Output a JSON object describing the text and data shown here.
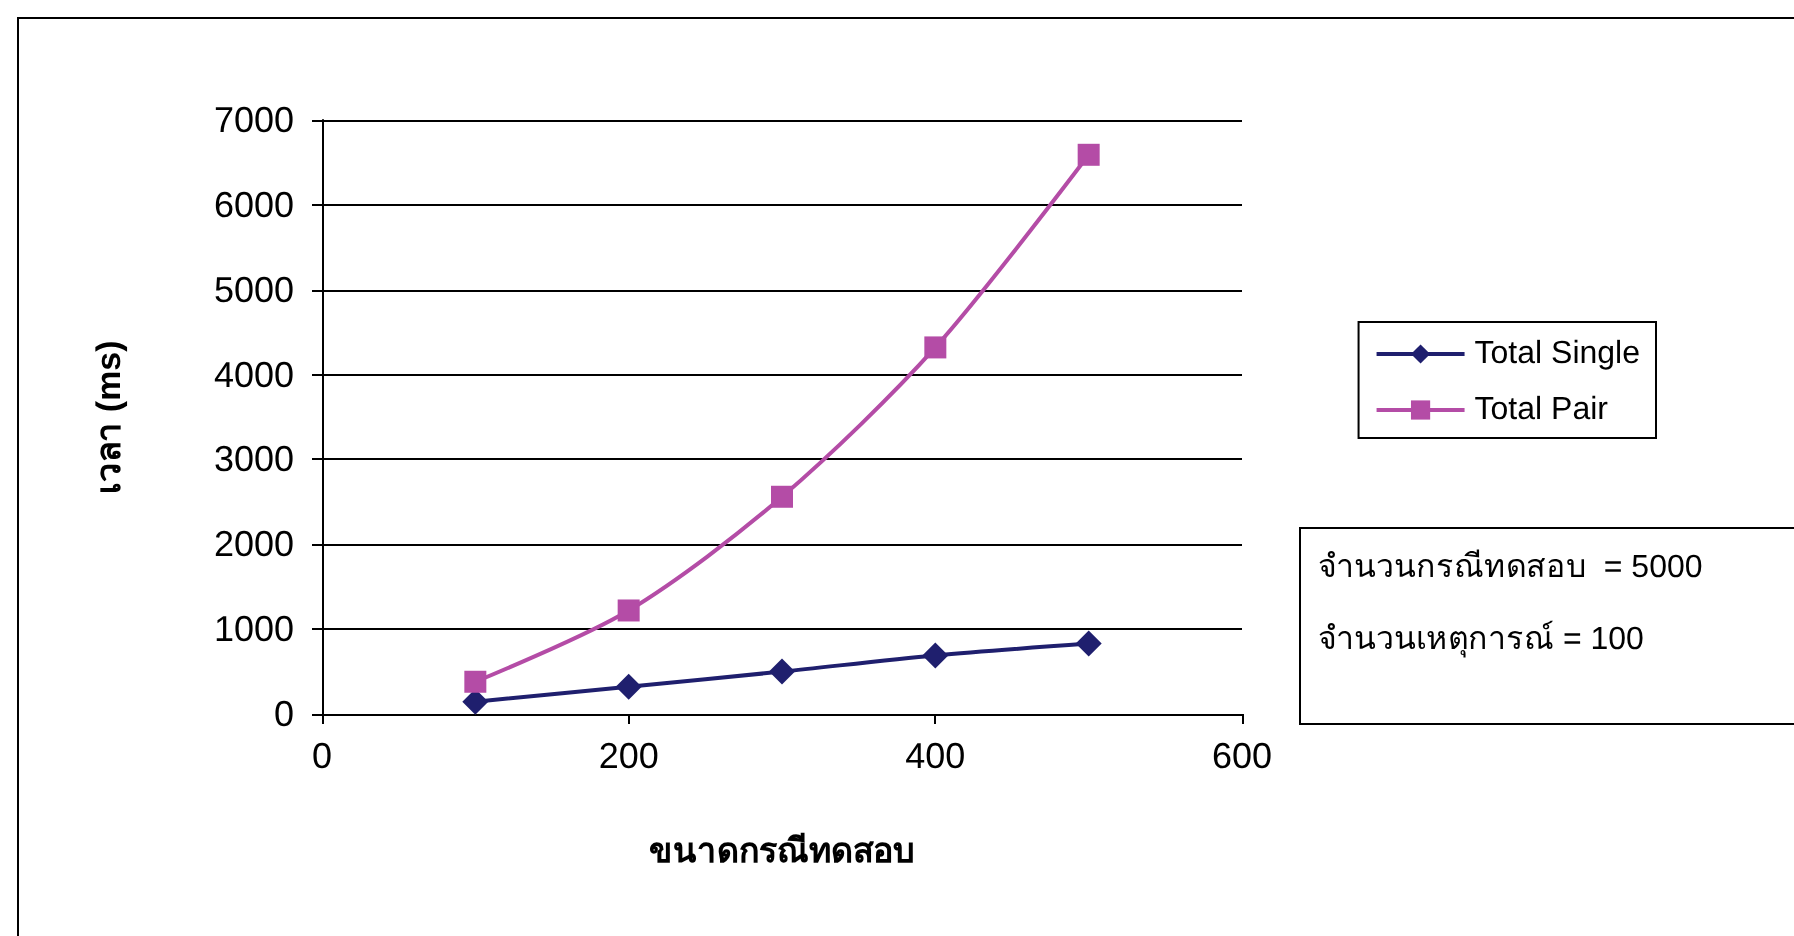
{
  "chart_data": {
    "type": "line",
    "xlabel": "ขนาดกรณีทดสอบ",
    "ylabel": "เวลา (ms)",
    "x": [
      100,
      200,
      300,
      400,
      500
    ],
    "series": [
      {
        "name": "Total Single",
        "color": "#1f1f6e",
        "marker": "diamond",
        "values": [
          145,
          320,
          500,
          690,
          830
        ]
      },
      {
        "name": "Total Pair",
        "color": "#b44ca6",
        "marker": "square",
        "values": [
          380,
          1220,
          2560,
          4320,
          6590
        ]
      }
    ],
    "xlim": [
      0,
      600
    ],
    "xticks": [
      0,
      200,
      400,
      600
    ],
    "ylim": [
      0,
      7000
    ],
    "yticks": [
      0,
      1000,
      2000,
      3000,
      4000,
      5000,
      6000,
      7000
    ],
    "grid": "y",
    "legend": "right",
    "annotations": [
      "จำนวนกรณีทดสอบ  = 5000",
      "จำนวนเหตุการณ์ = 100"
    ]
  }
}
